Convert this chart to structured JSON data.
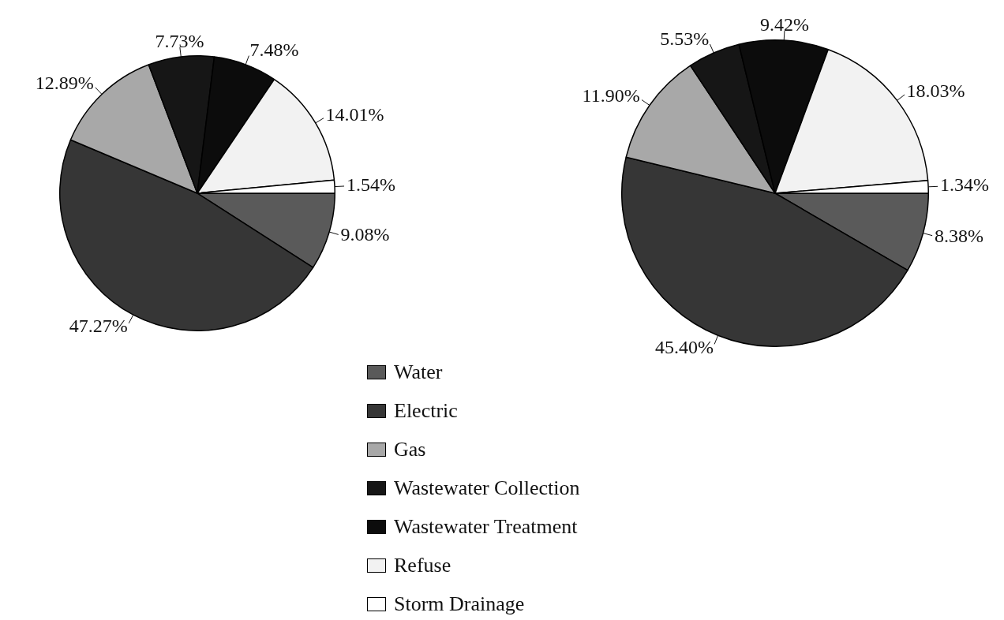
{
  "chart_data": [
    {
      "type": "pie",
      "categories": [
        "Water",
        "Electric",
        "Gas",
        "Wastewater Collection",
        "Wastewater Treatment",
        "Refuse",
        "Storm Drainage"
      ],
      "values": [
        9.08,
        47.27,
        12.89,
        7.73,
        7.48,
        14.01,
        1.54
      ],
      "value_labels": [
        "9.08%",
        "47.27%",
        "12.89%",
        "7.73%",
        "7.48%",
        "14.01%",
        "1.54%"
      ],
      "colors": [
        "#5a5a5a",
        "#363636",
        "#a8a8a8",
        "#161616",
        "#0c0c0c",
        "#f2f2f2",
        "#ffffff"
      ],
      "legend": "bottom right"
    },
    {
      "type": "pie",
      "categories": [
        null,
        null,
        null,
        null,
        null,
        null,
        null
      ],
      "values": [
        8.38,
        45.4,
        11.9,
        5.53,
        9.42,
        18.03,
        1.34
      ],
      "value_labels": [
        "8.38%",
        "45.40%",
        "11.90%",
        "5.53%",
        "9.42%",
        "18.03%",
        "1.34%"
      ],
      "colors": [
        "#5a5a5a",
        "#363636",
        "#a8a8a8",
        "#161616",
        "#0c0c0c",
        "#f2f2f2",
        "#ffffff"
      ]
    }
  ]
}
